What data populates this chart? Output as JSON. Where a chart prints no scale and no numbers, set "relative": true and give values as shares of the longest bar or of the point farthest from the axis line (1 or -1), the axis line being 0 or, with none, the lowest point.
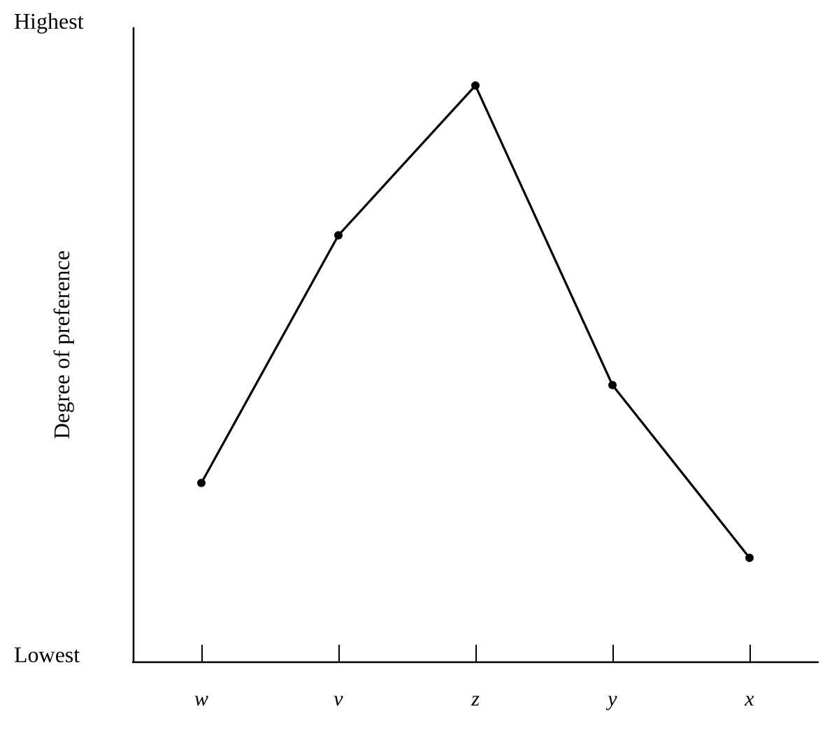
{
  "chart_data": {
    "type": "line",
    "ylabel": "Degree of preference",
    "categories": [
      "w",
      "v",
      "z",
      "y",
      "x"
    ],
    "series": [
      {
        "color": "#000000",
        "values": [
          0.31,
          0.74,
          1,
          0.48,
          0.18
        ]
      }
    ],
    "relative": true,
    "annotations": [
      "Highest",
      "Lowest"
    ],
    "grid": false,
    "marker": "circle",
    "line_style": "solid"
  }
}
